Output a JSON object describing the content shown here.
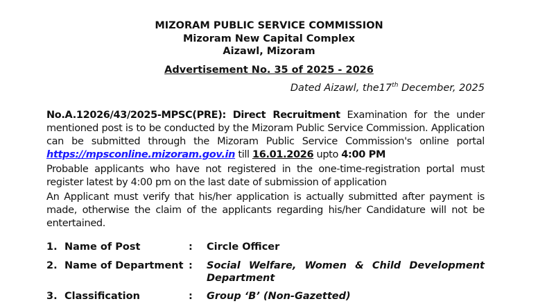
{
  "header": {
    "org": "MIZORAM PUBLIC SERVICE COMMISSION",
    "address1": "Mizoram New Capital Complex",
    "address2": "Aizawl, Mizoram",
    "advertisement": "Advertisement No. 35  of 2025 - 2026"
  },
  "dated": {
    "prefix": "Dated Aizawl, the17",
    "sup": "th",
    "suffix": " December, 2025"
  },
  "notice": {
    "ref": "No.A.12026/43/2025-MPSC(PRE):",
    "direct": "Direct Recruitment",
    "text1": " Examination for the under mentioned post is to be conducted by the Mizoram Public Service Commission. Application can be submitted through the Mizoram Public Service Commission's online portal ",
    "link": "https://mpsconline.mizoram.gov.in",
    "till": " till ",
    "date": "16.01.2026",
    "upto": " upto ",
    "time": "4:00 PM",
    "para2": "Probable applicants who have not registered in the one-time-registration portal must register latest by 4:00 pm on the last date of submission of application",
    "para3": "An Applicant must verify that his/her application is actually submitted after payment is made, otherwise the claim of the applicants regarding his/her Candidature will not be entertained."
  },
  "items": [
    {
      "num": "1.",
      "label": "Name of Post",
      "colon": ":",
      "value": "Circle Officer"
    },
    {
      "num": "2.",
      "label": "Name of Department",
      "colon": ":",
      "value": "Social Welfare, Women & Child Development Department"
    },
    {
      "num": "3.",
      "label": "Classification",
      "colon": ":",
      "value": "Group ‘B’ (Non-Gazetted)"
    }
  ]
}
